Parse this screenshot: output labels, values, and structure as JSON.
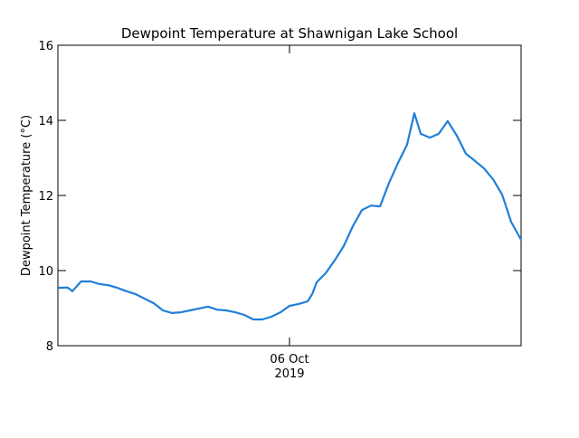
{
  "chart_data": {
    "type": "line",
    "title": "Dewpoint Temperature at Shawnigan Lake School",
    "y_label": "Dewpoint Temperature (°C)",
    "x": [
      -12,
      -11.5,
      -11.25,
      -10.8,
      -10.3,
      -9.84,
      -9.375,
      -8.91,
      -8.44,
      -7.97,
      -7.5,
      -7.03,
      -6.56,
      -6.09,
      -5.625,
      -5.16,
      -4.69,
      -4.22,
      -3.75,
      -3.28,
      -2.81,
      -2.34,
      -1.875,
      -1.41,
      -0.94,
      -0.47,
      0,
      0.47,
      0.94,
      1.17,
      1.41,
      1.875,
      2.34,
      2.81,
      3.28,
      3.75,
      4.22,
      4.69,
      5.16,
      5.625,
      6.09,
      6.47,
      6.8,
      7.27,
      7.73,
      8.2,
      8.67,
      9.14,
      9.61,
      10.08,
      10.55,
      11.02,
      11.48,
      12
    ],
    "series": [
      {
        "color": "#1f7fd8",
        "values": [
          9.54,
          9.55,
          9.45,
          9.71,
          9.71,
          9.64,
          9.61,
          9.54,
          9.45,
          9.37,
          9.25,
          9.13,
          8.94,
          8.87,
          8.89,
          8.94,
          8.99,
          9.04,
          8.96,
          8.94,
          8.89,
          8.82,
          8.7,
          8.7,
          8.77,
          8.89,
          9.06,
          9.11,
          9.18,
          9.37,
          9.69,
          9.93,
          10.27,
          10.65,
          11.18,
          11.61,
          11.73,
          11.71,
          12.34,
          12.87,
          13.35,
          14.19,
          13.64,
          13.54,
          13.64,
          13.98,
          13.59,
          13.11,
          12.92,
          12.72,
          12.43,
          12.02,
          11.3,
          10.82
        ]
      }
    ],
    "xlim": [
      -12,
      12
    ],
    "xticks": [
      {
        "value": 0,
        "label": "06 Oct",
        "year": "2019"
      }
    ],
    "ylim": [
      8,
      16
    ],
    "yticks": [
      8,
      10,
      12,
      14,
      16
    ]
  }
}
